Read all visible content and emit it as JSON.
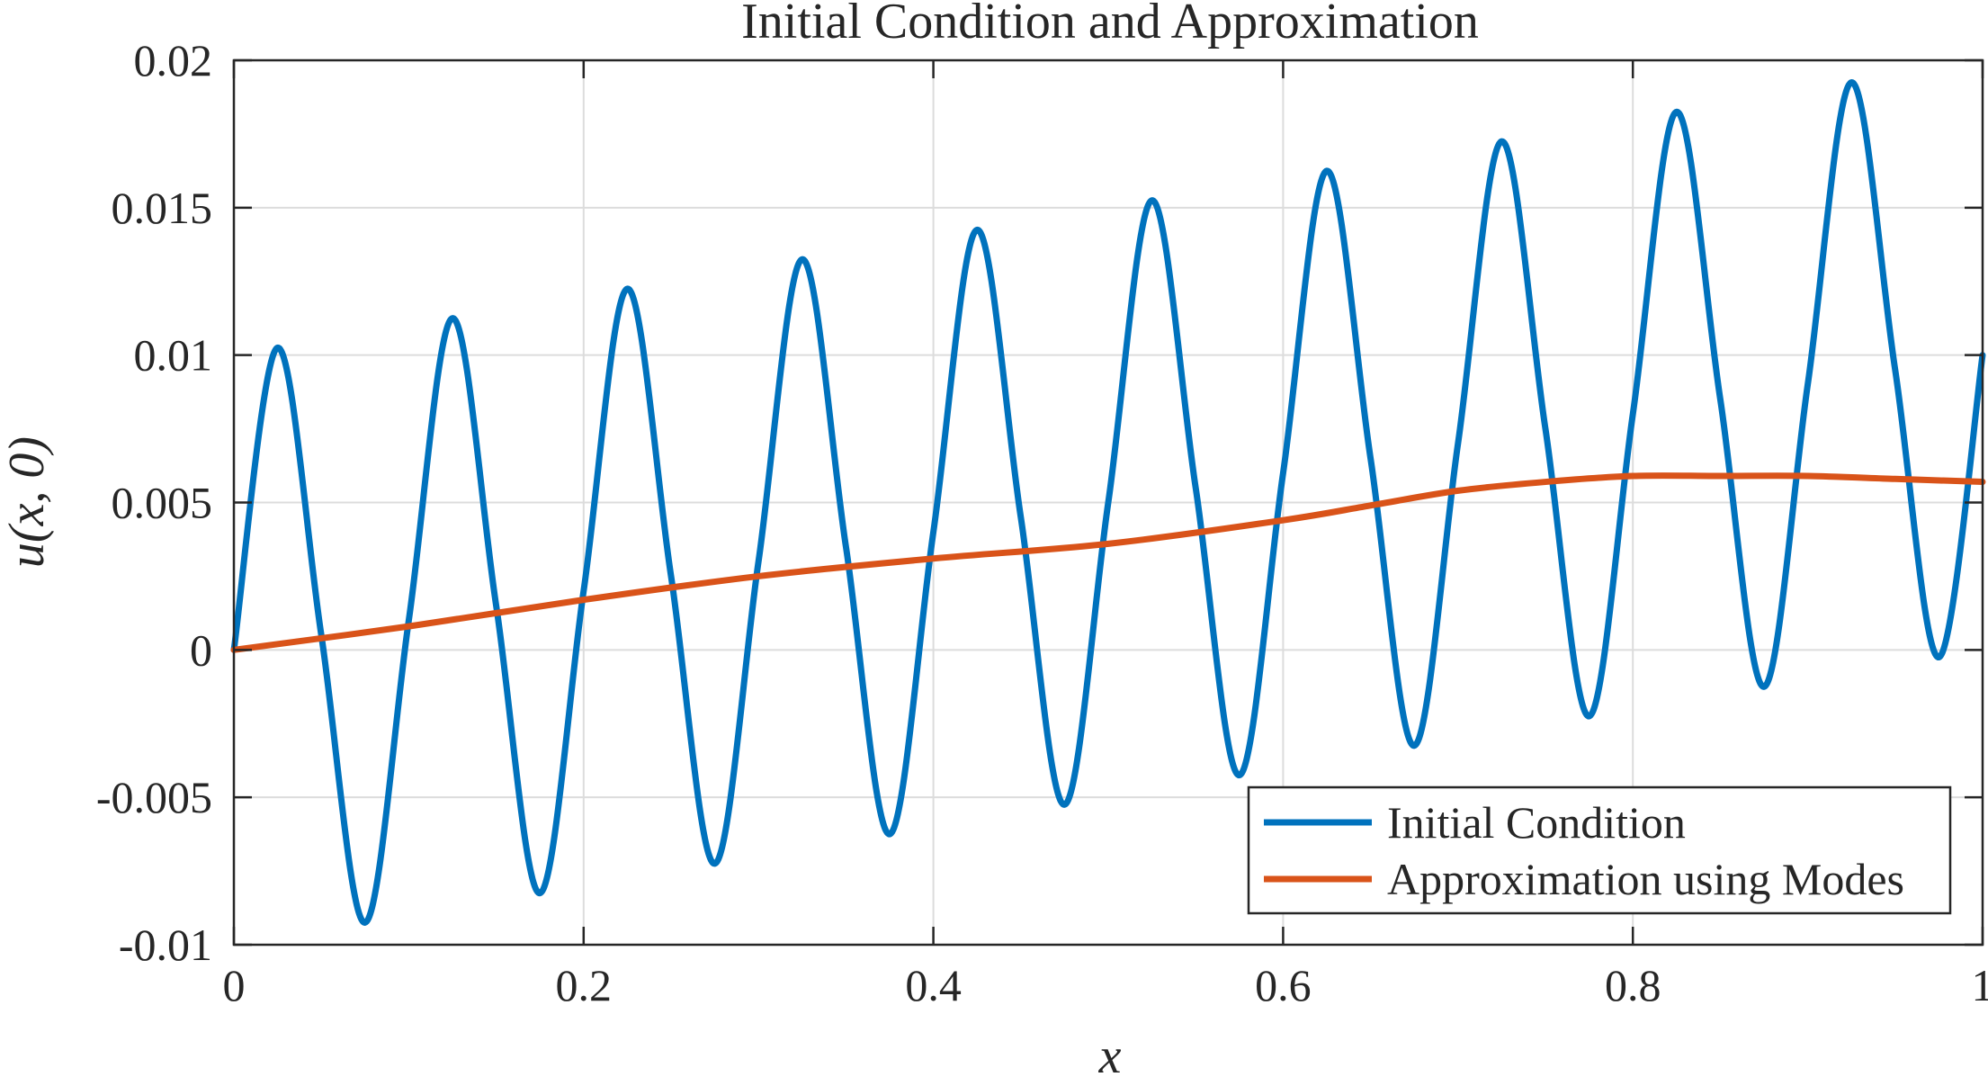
{
  "chart_data": {
    "type": "line",
    "title": "Initial Condition and Approximation",
    "xlabel": "x",
    "ylabel": "u(x, 0)",
    "xlim": [
      0,
      1
    ],
    "ylim": [
      -0.01,
      0.02
    ],
    "grid": true,
    "legend_position": "bottom-right",
    "x_ticks": [
      0,
      0.2,
      0.4,
      0.6,
      0.8,
      1
    ],
    "x_tick_labels": [
      "0",
      "0.2",
      "0.4",
      "0.6",
      "0.8",
      "1"
    ],
    "y_ticks": [
      -0.01,
      -0.005,
      0,
      0.005,
      0.01,
      0.015,
      0.02
    ],
    "y_tick_labels": [
      "-0.01",
      "-0.005",
      "0",
      "0.005",
      "0.01",
      "0.015",
      "0.02"
    ],
    "series": [
      {
        "name": "Initial Condition",
        "color": "#0072BD",
        "x": [
          0,
          0.025,
          0.05,
          0.075,
          0.1,
          0.125,
          0.15,
          0.175,
          0.2,
          0.225,
          0.25,
          0.275,
          0.3,
          0.325,
          0.35,
          0.375,
          0.4,
          0.425,
          0.45,
          0.475,
          0.5,
          0.525,
          0.55,
          0.575,
          0.6,
          0.625,
          0.65,
          0.675,
          0.7,
          0.725,
          0.75,
          0.775,
          0.8,
          0.825,
          0.85,
          0.875,
          0.9,
          0.925,
          0.95,
          0.975,
          1.0
        ],
        "y": [
          0.0,
          0.01025,
          0.0005,
          -0.00925,
          0.001,
          0.01125,
          0.0015,
          -0.00825,
          0.002,
          0.01225,
          0.0025,
          -0.00725,
          0.003,
          0.01325,
          0.0035,
          -0.00625,
          0.004,
          0.01425,
          0.0045,
          -0.00525,
          0.005,
          0.01525,
          0.0055,
          -0.00425,
          0.006,
          0.01625,
          0.0065,
          -0.00325,
          0.007,
          0.01725,
          0.0075,
          -0.00225,
          0.008,
          0.01825,
          0.0085,
          -0.00125,
          0.009,
          0.01925,
          0.0095,
          -0.00025,
          0.01
        ]
      },
      {
        "name": "Approximation using Modes",
        "color": "#D95319",
        "x": [
          0,
          0.1,
          0.2,
          0.3,
          0.4,
          0.5,
          0.6,
          0.65,
          0.7,
          0.75,
          0.8,
          0.85,
          0.9,
          0.95,
          1.0
        ],
        "y": [
          0.0,
          0.0008,
          0.0017,
          0.0025,
          0.0031,
          0.0036,
          0.0044,
          0.0049,
          0.0054,
          0.0057,
          0.0059,
          0.0059,
          0.0059,
          0.0058,
          0.0057
        ]
      }
    ]
  }
}
